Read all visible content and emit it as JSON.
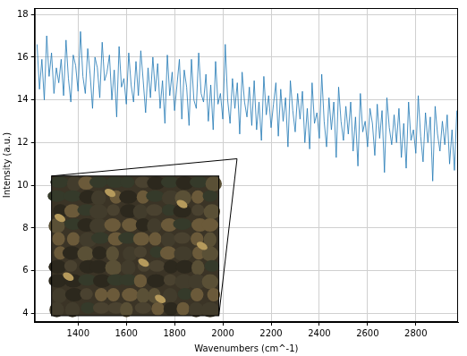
{
  "chart_data": {
    "type": "line",
    "xlabel": "Wavenumbers (cm^-1)",
    "ylabel": "Intensity (a.u.)",
    "color": "#1f77b4",
    "grid": true,
    "xlim": [
      1220,
      2975
    ],
    "xticks": [
      1400,
      1600,
      1800,
      2000,
      2200,
      2400,
      2600,
      2800
    ],
    "ylim": [
      3.6,
      18.3
    ],
    "yticks": [
      4,
      6,
      8,
      10,
      12,
      14,
      16,
      18
    ],
    "x": [
      1230,
      1240,
      1250,
      1260,
      1270,
      1280,
      1290,
      1300,
      1310,
      1320,
      1330,
      1340,
      1350,
      1360,
      1370,
      1380,
      1390,
      1400,
      1410,
      1420,
      1430,
      1440,
      1450,
      1460,
      1470,
      1480,
      1490,
      1500,
      1510,
      1520,
      1530,
      1540,
      1550,
      1560,
      1570,
      1580,
      1590,
      1600,
      1610,
      1620,
      1630,
      1640,
      1650,
      1660,
      1670,
      1680,
      1690,
      1700,
      1710,
      1720,
      1730,
      1740,
      1750,
      1760,
      1770,
      1780,
      1790,
      1800,
      1810,
      1820,
      1830,
      1840,
      1850,
      1860,
      1870,
      1880,
      1890,
      1900,
      1910,
      1920,
      1930,
      1940,
      1950,
      1960,
      1970,
      1980,
      1990,
      2000,
      2010,
      2020,
      2030,
      2040,
      2050,
      2060,
      2070,
      2080,
      2090,
      2100,
      2110,
      2120,
      2130,
      2140,
      2150,
      2160,
      2170,
      2180,
      2190,
      2200,
      2210,
      2220,
      2230,
      2240,
      2250,
      2260,
      2270,
      2280,
      2290,
      2300,
      2310,
      2320,
      2330,
      2340,
      2350,
      2360,
      2370,
      2380,
      2390,
      2400,
      2410,
      2420,
      2430,
      2440,
      2450,
      2460,
      2470,
      2480,
      2490,
      2500,
      2510,
      2520,
      2530,
      2540,
      2550,
      2560,
      2570,
      2580,
      2590,
      2600,
      2610,
      2620,
      2630,
      2640,
      2650,
      2660,
      2670,
      2680,
      2690,
      2700,
      2710,
      2720,
      2730,
      2740,
      2750,
      2760,
      2770,
      2780,
      2790,
      2800,
      2810,
      2820,
      2830,
      2840,
      2850,
      2860,
      2870,
      2880,
      2890,
      2900,
      2910,
      2920,
      2930,
      2940,
      2950,
      2960,
      2970
    ],
    "values": [
      16.6,
      14.5,
      15.9,
      14.0,
      17.0,
      15.1,
      16.2,
      14.3,
      15.5,
      14.8,
      15.9,
      14.2,
      16.8,
      15.0,
      13.9,
      16.1,
      15.6,
      14.4,
      17.2,
      15.1,
      14.3,
      16.4,
      15.2,
      13.6,
      16.0,
      15.5,
      14.1,
      16.7,
      14.9,
      15.3,
      16.1,
      14.0,
      15.4,
      13.2,
      16.5,
      14.6,
      15.0,
      13.8,
      16.2,
      14.7,
      13.9,
      15.8,
      14.2,
      16.3,
      14.9,
      13.4,
      15.5,
      14.1,
      16.0,
      14.4,
      15.7,
      13.6,
      14.9,
      12.9,
      16.1,
      14.2,
      15.3,
      13.5,
      14.7,
      15.9,
      13.1,
      15.4,
      14.6,
      12.8,
      15.9,
      14.0,
      13.6,
      16.2,
      14.3,
      13.9,
      15.2,
      13.0,
      14.7,
      12.6,
      15.8,
      13.8,
      14.3,
      13.1,
      16.6,
      14.0,
      12.9,
      15.0,
      13.6,
      14.8,
      12.4,
      15.3,
      13.9,
      13.2,
      14.6,
      12.8,
      14.9,
      12.6,
      13.9,
      12.1,
      15.1,
      13.3,
      14.2,
      12.7,
      13.8,
      14.8,
      12.3,
      14.5,
      13.0,
      14.1,
      11.8,
      14.9,
      13.5,
      12.5,
      14.3,
      13.1,
      14.4,
      12.0,
      13.6,
      11.7,
      14.8,
      12.9,
      13.4,
      12.2,
      15.2,
      13.0,
      11.8,
      14.1,
      12.6,
      13.9,
      11.3,
      14.6,
      13.0,
      12.1,
      13.7,
      12.4,
      13.9,
      11.6,
      13.2,
      10.9,
      14.3,
      12.5,
      13.0,
      11.8,
      13.6,
      12.9,
      11.4,
      13.8,
      12.2,
      13.5,
      10.6,
      14.1,
      12.7,
      11.9,
      13.3,
      12.0,
      13.6,
      11.3,
      12.9,
      10.8,
      13.9,
      12.1,
      12.6,
      11.5,
      14.2,
      12.3,
      11.1,
      13.4,
      12.0,
      13.2,
      10.2,
      13.7,
      12.4,
      11.6,
      13.0,
      11.9,
      13.3,
      11.0,
      12.6,
      10.7,
      13.5
    ]
  }
}
